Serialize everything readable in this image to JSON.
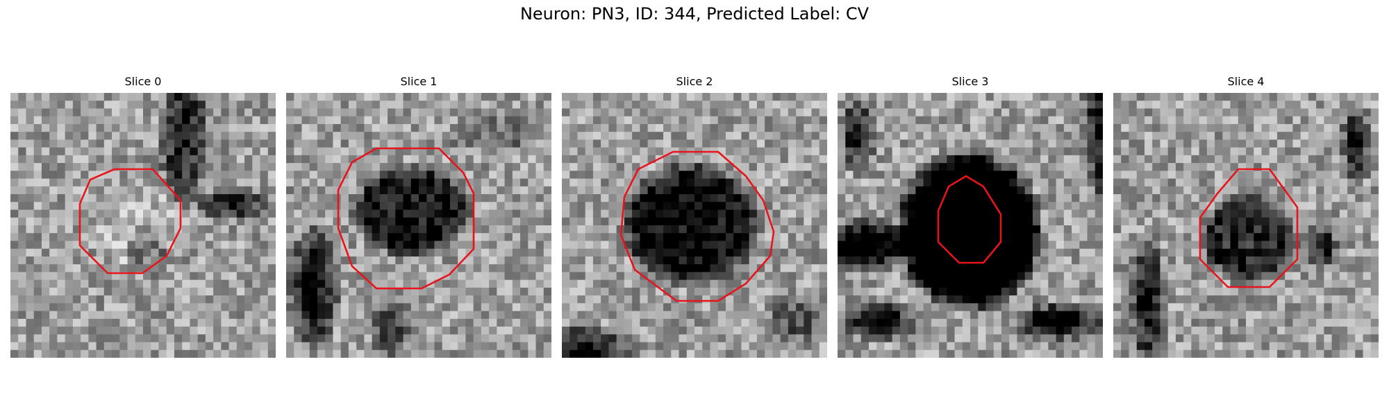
{
  "figure": {
    "title": "Neuron: PN3, ID: 344, Predicted Label: CV"
  },
  "panels": [
    {
      "title": "Slice 0",
      "blob_tone": "light",
      "contour_color": "#e8141c"
    },
    {
      "title": "Slice 1",
      "blob_tone": "dark",
      "contour_color": "#e8141c"
    },
    {
      "title": "Slice 2",
      "blob_tone": "dark",
      "contour_color": "#e8141c"
    },
    {
      "title": "Slice 3",
      "blob_tone": "black",
      "contour_color": "#e8141c"
    },
    {
      "title": "Slice 4",
      "blob_tone": "dark",
      "contour_color": "#e8141c"
    }
  ],
  "colormap": "gray"
}
